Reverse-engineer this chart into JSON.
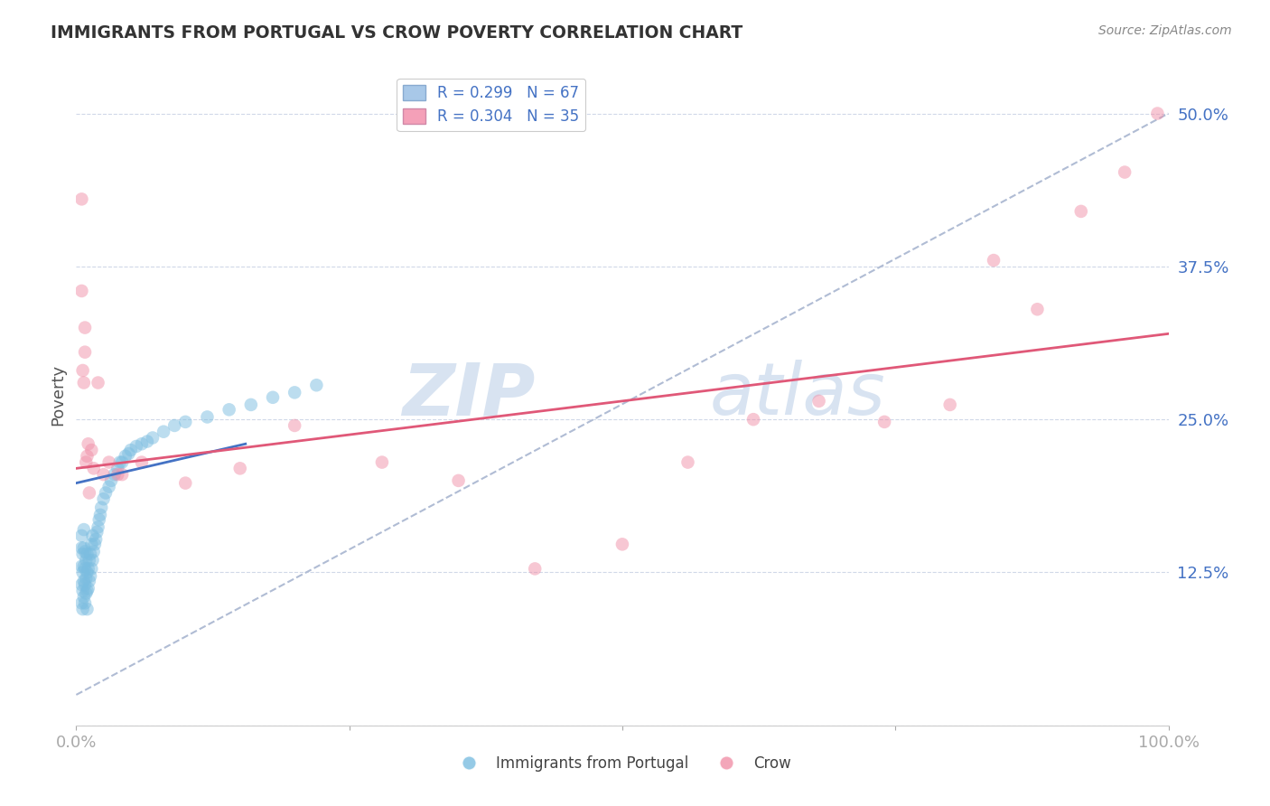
{
  "title": "IMMIGRANTS FROM PORTUGAL VS CROW POVERTY CORRELATION CHART",
  "source": "Source: ZipAtlas.com",
  "ylabel": "Poverty",
  "yticks": [
    0.0,
    0.125,
    0.25,
    0.375,
    0.5
  ],
  "ytick_labels": [
    "",
    "12.5%",
    "25.0%",
    "37.5%",
    "50.0%"
  ],
  "xlim": [
    0.0,
    1.0
  ],
  "ylim": [
    0.0,
    0.54
  ],
  "legend_entries": [
    {
      "label": "R = 0.299   N = 67",
      "color": "#a8c8e8"
    },
    {
      "label": "R = 0.304   N = 35",
      "color": "#f4a0b8"
    }
  ],
  "legend_bottom": [
    "Immigrants from Portugal",
    "Crow"
  ],
  "blue_color": "#7bbde0",
  "pink_color": "#f090a8",
  "blue_line_color": "#4472c4",
  "pink_line_color": "#e05878",
  "watermark_zip": "ZIP",
  "watermark_atlas": "atlas",
  "background_color": "#ffffff",
  "grid_color": "#d0d8e8",
  "blue_dots_x": [
    0.005,
    0.005,
    0.005,
    0.005,
    0.005,
    0.006,
    0.006,
    0.006,
    0.006,
    0.007,
    0.007,
    0.007,
    0.007,
    0.007,
    0.008,
    0.008,
    0.008,
    0.008,
    0.009,
    0.009,
    0.009,
    0.01,
    0.01,
    0.01,
    0.01,
    0.011,
    0.011,
    0.012,
    0.012,
    0.013,
    0.013,
    0.014,
    0.014,
    0.015,
    0.015,
    0.016,
    0.017,
    0.018,
    0.019,
    0.02,
    0.021,
    0.022,
    0.023,
    0.025,
    0.027,
    0.03,
    0.032,
    0.035,
    0.038,
    0.04,
    0.042,
    0.045,
    0.048,
    0.05,
    0.055,
    0.06,
    0.065,
    0.07,
    0.08,
    0.09,
    0.1,
    0.12,
    0.14,
    0.16,
    0.18,
    0.2,
    0.22
  ],
  "blue_dots_y": [
    0.1,
    0.115,
    0.13,
    0.145,
    0.155,
    0.095,
    0.11,
    0.125,
    0.14,
    0.105,
    0.118,
    0.13,
    0.145,
    0.16,
    0.1,
    0.115,
    0.128,
    0.142,
    0.108,
    0.12,
    0.135,
    0.095,
    0.11,
    0.125,
    0.14,
    0.112,
    0.128,
    0.118,
    0.135,
    0.122,
    0.14,
    0.128,
    0.148,
    0.135,
    0.155,
    0.142,
    0.148,
    0.152,
    0.158,
    0.162,
    0.168,
    0.172,
    0.178,
    0.185,
    0.19,
    0.195,
    0.2,
    0.205,
    0.21,
    0.215,
    0.215,
    0.22,
    0.222,
    0.225,
    0.228,
    0.23,
    0.232,
    0.235,
    0.24,
    0.245,
    0.248,
    0.252,
    0.258,
    0.262,
    0.268,
    0.272,
    0.278
  ],
  "pink_dots_x": [
    0.005,
    0.005,
    0.006,
    0.007,
    0.008,
    0.008,
    0.009,
    0.01,
    0.011,
    0.012,
    0.014,
    0.016,
    0.02,
    0.025,
    0.03,
    0.038,
    0.042,
    0.06,
    0.1,
    0.15,
    0.2,
    0.28,
    0.35,
    0.42,
    0.5,
    0.56,
    0.62,
    0.68,
    0.74,
    0.8,
    0.84,
    0.88,
    0.92,
    0.96,
    0.99
  ],
  "pink_dots_y": [
    0.43,
    0.355,
    0.29,
    0.28,
    0.305,
    0.325,
    0.215,
    0.22,
    0.23,
    0.19,
    0.225,
    0.21,
    0.28,
    0.205,
    0.215,
    0.205,
    0.205,
    0.215,
    0.198,
    0.21,
    0.245,
    0.215,
    0.2,
    0.128,
    0.148,
    0.215,
    0.25,
    0.265,
    0.248,
    0.262,
    0.38,
    0.34,
    0.42,
    0.452,
    0.5
  ],
  "blue_trend_x": [
    0.0,
    0.155
  ],
  "blue_trend_y": [
    0.198,
    0.23
  ],
  "pink_trend_x": [
    0.0,
    1.0
  ],
  "pink_trend_y": [
    0.21,
    0.32
  ],
  "gray_dash_trend_x": [
    0.0,
    1.0
  ],
  "gray_dash_trend_y": [
    0.025,
    0.5
  ],
  "tick_color": "#4472c4"
}
